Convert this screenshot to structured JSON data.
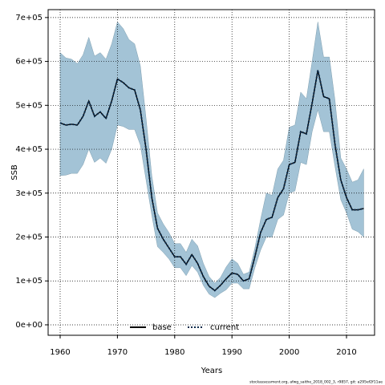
{
  "chart_data": {
    "type": "line",
    "x_label": "Years",
    "y_label": "SSB",
    "footnote": "stockassessment.org, afwg_saithe_2018_002_3, r9857, git: a295ef2f11ae",
    "x": [
      1960,
      1961,
      1962,
      1963,
      1964,
      1965,
      1966,
      1967,
      1968,
      1969,
      1970,
      1971,
      1972,
      1973,
      1974,
      1975,
      1976,
      1977,
      1978,
      1979,
      1980,
      1981,
      1982,
      1983,
      1984,
      1985,
      1986,
      1987,
      1988,
      1989,
      1990,
      1991,
      1992,
      1993,
      1994,
      1995,
      1996,
      1997,
      1998,
      1999,
      2000,
      2001,
      2002,
      2003,
      2004,
      2005,
      2006,
      2007,
      2008,
      2009,
      2010,
      2011,
      2012,
      2013
    ],
    "xlim": [
      1957.9,
      2014.9
    ],
    "xticks": [
      1960,
      1970,
      1980,
      1990,
      2000,
      2010
    ],
    "ylim": [
      -23800,
      718000
    ],
    "yticks": [
      {
        "value": 0,
        "label": "0e+00"
      },
      {
        "value": 100000,
        "label": "1e+05"
      },
      {
        "value": 200000,
        "label": "2e+05"
      },
      {
        "value": 300000,
        "label": "3e+05"
      },
      {
        "value": 400000,
        "label": "4e+05"
      },
      {
        "value": 500000,
        "label": "5e+05"
      },
      {
        "value": 600000,
        "label": "6e+05"
      },
      {
        "value": 700000,
        "label": "7e+05"
      }
    ],
    "grid": true,
    "legend": "bottom",
    "band": {
      "color": "#a3c3d6",
      "upper": [
        620000,
        608000,
        605000,
        595000,
        615000,
        655000,
        612000,
        620000,
        605000,
        640000,
        690000,
        675000,
        650000,
        640000,
        590000,
        470000,
        340000,
        255000,
        230000,
        210000,
        185000,
        185000,
        165000,
        195000,
        180000,
        140000,
        110000,
        95000,
        108000,
        132000,
        150000,
        140000,
        115000,
        120000,
        175000,
        240000,
        300000,
        295000,
        355000,
        375000,
        450000,
        455000,
        530000,
        515000,
        600000,
        690000,
        610000,
        610000,
        510000,
        380000,
        355000,
        325000,
        330000,
        355000
      ],
      "lower": [
        340000,
        341000,
        345000,
        345000,
        365000,
        400000,
        370000,
        380000,
        368000,
        400000,
        455000,
        452000,
        445000,
        445000,
        410000,
        330000,
        250000,
        178000,
        165000,
        150000,
        130000,
        130000,
        112000,
        135000,
        120000,
        90000,
        70000,
        62000,
        72000,
        80000,
        95000,
        95000,
        82000,
        82000,
        130000,
        170000,
        200000,
        200000,
        240000,
        250000,
        300000,
        305000,
        370000,
        365000,
        440000,
        490000,
        440000,
        440000,
        360000,
        285000,
        255000,
        218000,
        212000,
        200000
      ]
    },
    "series": [
      {
        "name": "base",
        "color": "#000000",
        "dash": "solid",
        "values": [
          460000,
          455000,
          457000,
          455000,
          475000,
          510000,
          475000,
          485000,
          470000,
          510000,
          560000,
          552000,
          540000,
          535000,
          490000,
          400000,
          290000,
          220000,
          195000,
          175000,
          155000,
          155000,
          138000,
          160000,
          140000,
          110000,
          88000,
          78000,
          90000,
          105000,
          118000,
          115000,
          100000,
          105000,
          155000,
          210000,
          240000,
          245000,
          290000,
          310000,
          365000,
          370000,
          440000,
          435000,
          505000,
          580000,
          520000,
          515000,
          410000,
          330000,
          290000,
          262000,
          262000,
          265000
        ]
      },
      {
        "name": "current",
        "color": "#0a2a4a",
        "dash": "dotted",
        "values": [
          460000,
          455000,
          457000,
          455000,
          475000,
          510000,
          475000,
          485000,
          470000,
          510000,
          560000,
          552000,
          540000,
          535000,
          490000,
          400000,
          290000,
          220000,
          195000,
          175000,
          155000,
          155000,
          138000,
          160000,
          140000,
          110000,
          88000,
          78000,
          90000,
          105000,
          118000,
          115000,
          100000,
          105000,
          155000,
          210000,
          240000,
          245000,
          290000,
          310000,
          365000,
          370000,
          440000,
          435000,
          505000,
          580000,
          520000,
          515000,
          410000,
          330000,
          290000,
          262000,
          262000,
          265000
        ]
      }
    ]
  }
}
